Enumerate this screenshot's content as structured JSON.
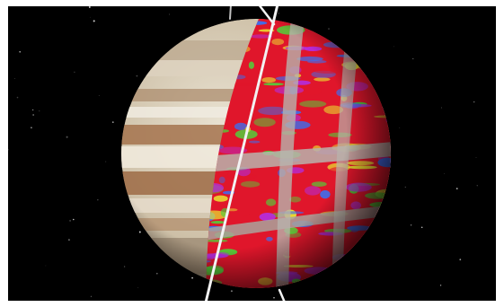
{
  "image": {
    "subject": "jupiter-globe-with-data-overlay-icon",
    "colors": {
      "background": "#000000",
      "frame_border": "#ffffff",
      "planet_base": "#cdbfa6",
      "band_brown": "#a4734d",
      "band_cream": "#e9e2d2",
      "overlay_red": "#e0162b",
      "overlay_magenta": "#b32de0",
      "overlay_green": "#4fd23b",
      "overlay_yellow": "#e9e431",
      "overlay_blue": "#3b6ff0",
      "axis_line": "#f2f2f2"
    }
  }
}
